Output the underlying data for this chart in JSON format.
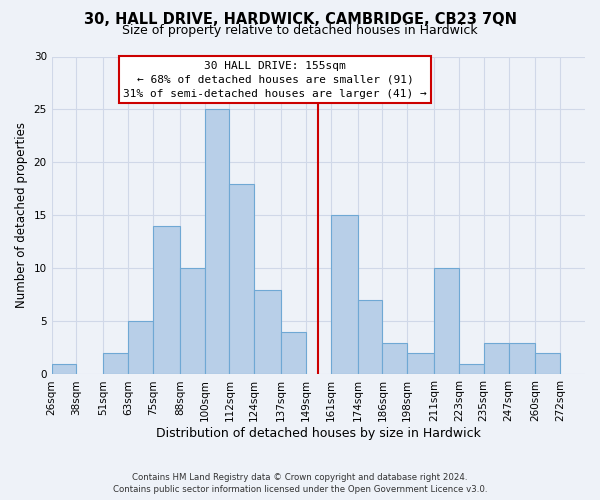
{
  "title": "30, HALL DRIVE, HARDWICK, CAMBRIDGE, CB23 7QN",
  "subtitle": "Size of property relative to detached houses in Hardwick",
  "xlabel": "Distribution of detached houses by size in Hardwick",
  "ylabel": "Number of detached properties",
  "footer_line1": "Contains HM Land Registry data © Crown copyright and database right 2024.",
  "footer_line2": "Contains public sector information licensed under the Open Government Licence v3.0.",
  "bin_labels": [
    "26sqm",
    "38sqm",
    "51sqm",
    "63sqm",
    "75sqm",
    "88sqm",
    "100sqm",
    "112sqm",
    "124sqm",
    "137sqm",
    "149sqm",
    "161sqm",
    "174sqm",
    "186sqm",
    "198sqm",
    "211sqm",
    "223sqm",
    "235sqm",
    "247sqm",
    "260sqm",
    "272sqm"
  ],
  "bar_heights": [
    1,
    0,
    2,
    5,
    14,
    10,
    25,
    18,
    8,
    4,
    0,
    15,
    7,
    3,
    2,
    10,
    1,
    3,
    3,
    2,
    0
  ],
  "bar_color": "#b8cfe8",
  "bar_edge_color": "#6fa8d4",
  "grid_color": "#d0d8e8",
  "background_color": "#eef2f8",
  "vline_color": "#cc0000",
  "annotation_title": "30 HALL DRIVE: 155sqm",
  "annotation_line1": "← 68% of detached houses are smaller (91)",
  "annotation_line2": "31% of semi-detached houses are larger (41) →",
  "annotation_box_color": "#ffffff",
  "annotation_box_edge": "#cc0000",
  "ylim": [
    0,
    30
  ],
  "yticks": [
    0,
    5,
    10,
    15,
    20,
    25,
    30
  ],
  "bin_edges": [
    26,
    38,
    51,
    63,
    75,
    88,
    100,
    112,
    124,
    137,
    149,
    161,
    174,
    186,
    198,
    211,
    223,
    235,
    247,
    260,
    272
  ],
  "title_fontsize": 10.5,
  "subtitle_fontsize": 9,
  "tick_fontsize": 7.5,
  "ylabel_fontsize": 8.5,
  "xlabel_fontsize": 9
}
